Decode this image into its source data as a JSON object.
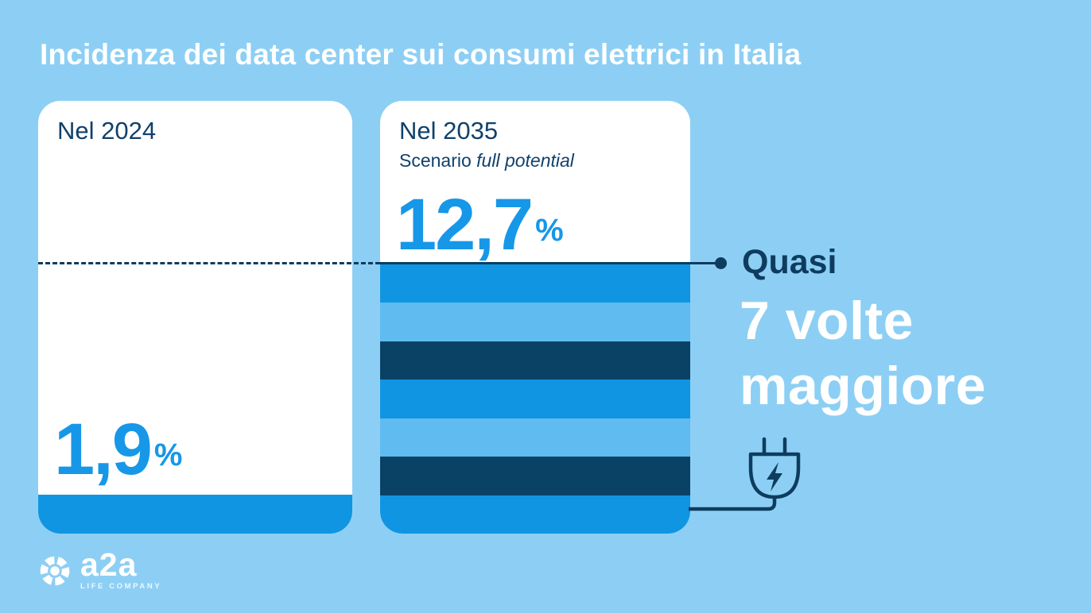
{
  "title": "Incidenza dei data center sui consumi elettrici in Italia",
  "colors": {
    "background": "#8DCFF4",
    "card": "#FFFFFF",
    "bright_blue": "#1095E2",
    "light_blue_stripe": "#5FBBF0",
    "dark_navy_stripe": "#0A4266",
    "navy_text": "#10416B",
    "navy_line": "#0E3C5F",
    "accent_number": "#1797E8",
    "white": "#FFFFFF"
  },
  "chart_data": {
    "type": "bar",
    "title": "Incidenza dei data center sui consumi elettrici in Italia",
    "categories": [
      "Nel 2024",
      "Nel 2035 (Scenario full potential)"
    ],
    "values": [
      1.9,
      12.7
    ],
    "unit": "%",
    "annotation": "Quasi 7 volte maggiore",
    "legend_position": "none",
    "grid": false
  },
  "cards": {
    "card2024": {
      "label": "Nel 2024",
      "value": "1,9",
      "unit": "%"
    },
    "card2035": {
      "label": "Nel 2035",
      "sublabel_regular": "Scenario ",
      "sublabel_italic": "full potential",
      "value": "12,7",
      "unit": "%",
      "stripe_colors": [
        "#1095E2",
        "#5FBBF0",
        "#0A4266",
        "#1095E2",
        "#5FBBF0",
        "#0A4266",
        "#1095E2"
      ]
    }
  },
  "callout": {
    "lead": "Quasi",
    "emphasis_line1": "7 volte",
    "emphasis_line2": "maggiore"
  },
  "icons": {
    "plug": "power-plug-icon",
    "bolt": "lightning-bolt-icon",
    "logo_sphere": "a2a-sphere-icon"
  },
  "logo": {
    "name": "a2a",
    "tagline": "LIFE COMPANY"
  }
}
